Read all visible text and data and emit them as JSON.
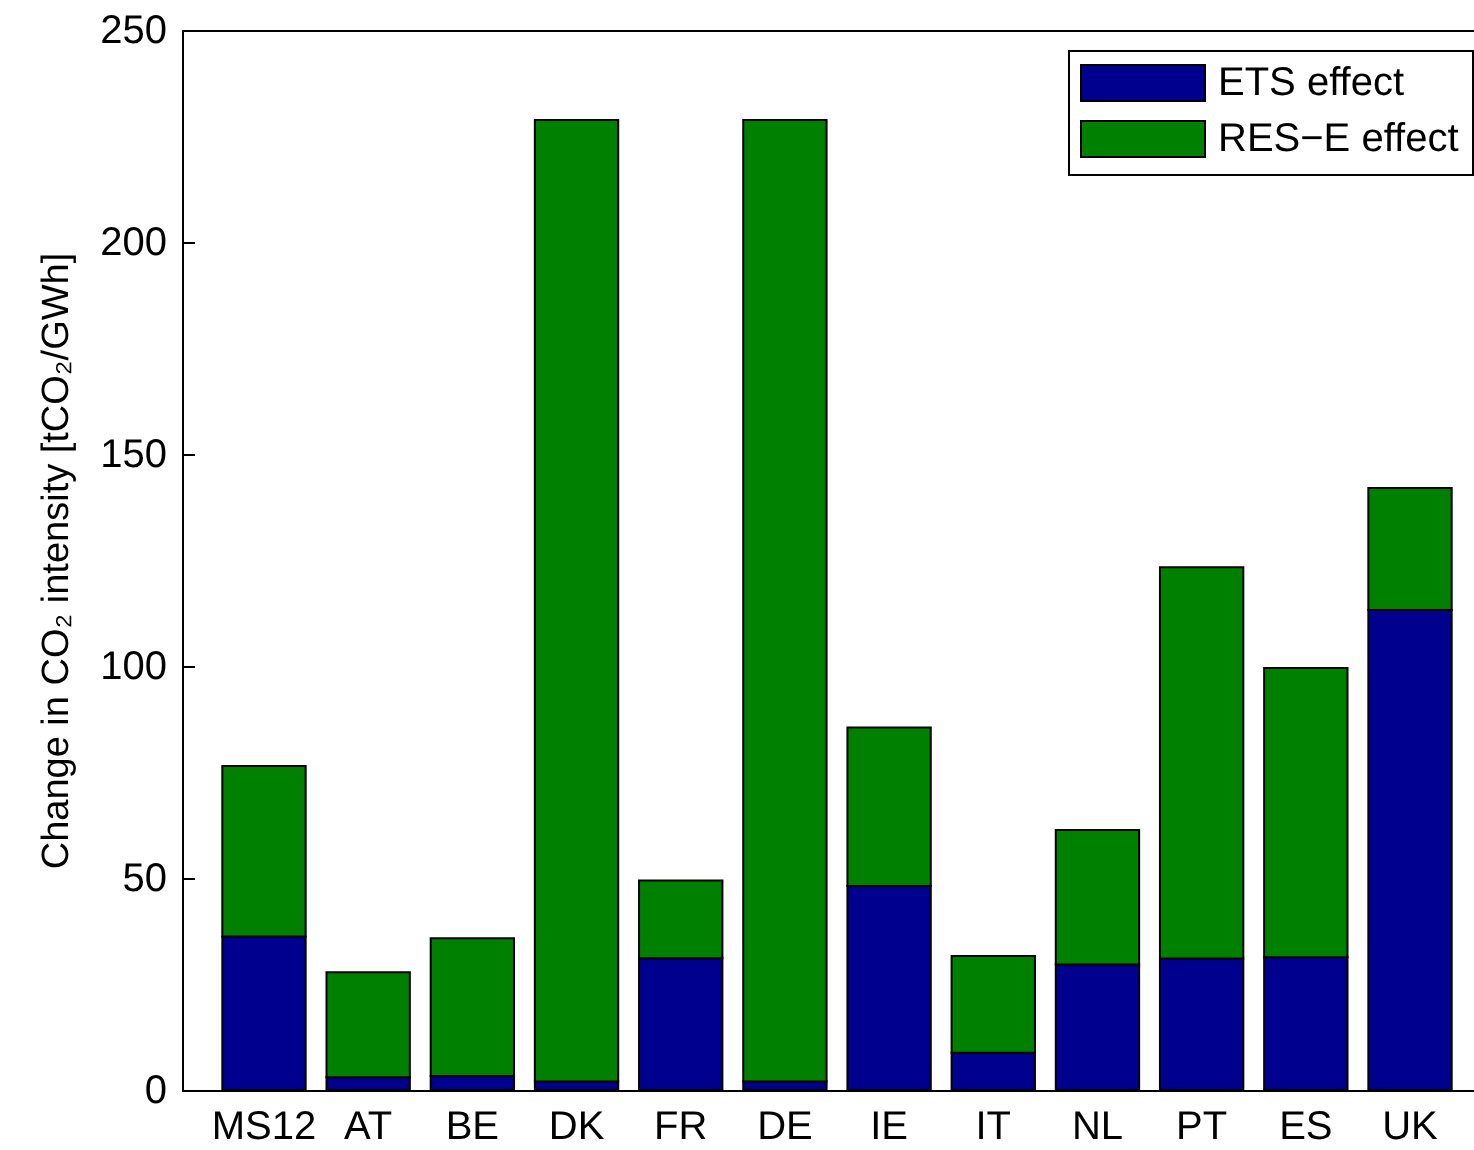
{
  "chart_data": {
    "type": "bar",
    "ylabel": "Change in CO₂ intensity [tCO₂/GWh]",
    "categories": [
      "MS12",
      "AT",
      "BE",
      "DK",
      "FR",
      "DE",
      "IE",
      "IT",
      "NL",
      "PT",
      "ES",
      "UK"
    ],
    "stacked": true,
    "ylim": [
      0,
      250
    ],
    "yticks": [
      0,
      50,
      100,
      150,
      200,
      250
    ],
    "legend": "top right",
    "series": [
      {
        "name": "ETS effect",
        "color": "#00008f",
        "values": [
          36.2,
          3,
          3.3,
          2,
          31.1,
          2,
          48.1,
          8.8,
          29.6,
          31,
          31.3,
          113.2
        ]
      },
      {
        "name": "RES−E effect",
        "color": "#008000",
        "values": [
          40.2,
          24.8,
          32.5,
          226.8,
          18.3,
          226.8,
          37.4,
          22.8,
          31.7,
          92.3,
          68.2,
          28.8
        ]
      }
    ]
  }
}
